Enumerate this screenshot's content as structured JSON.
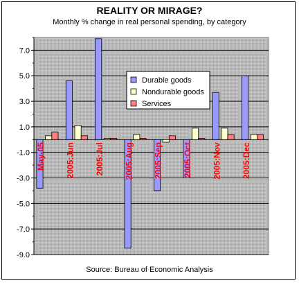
{
  "chart_data": {
    "type": "bar",
    "title": "REALITY OR MIRAGE?",
    "subtitle": "Monthly % change in real personal spending, by category",
    "source": "Source: Bureau of Economic Analysis",
    "categories": [
      "May-05",
      "2005:Jun",
      "2005:Jul",
      "2005:Aug",
      "2005:Sep",
      "2005:Oct",
      "2005:Nov",
      "2005:Dec"
    ],
    "series": [
      {
        "name": "Durable goods",
        "color": "#9999ff",
        "values": [
          -3.8,
          4.6,
          7.9,
          -8.5,
          -4.0,
          -3.0,
          3.7,
          5.0
        ]
      },
      {
        "name": "Nondurable goods",
        "color": "#ffffcc",
        "values": [
          0.3,
          1.1,
          0.1,
          0.4,
          -0.2,
          0.9,
          0.9,
          0.4
        ]
      },
      {
        "name": "Services",
        "color": "#ff8080",
        "values": [
          0.6,
          0.3,
          0.1,
          0.1,
          0.3,
          0.1,
          0.4,
          0.4
        ]
      }
    ],
    "y_ticks": [
      "7.0",
      "5.0",
      "3.0",
      "1.0",
      "-1.0",
      "-3.0",
      "-5.0",
      "-7.0",
      "-9.0"
    ],
    "ylim": [
      -9,
      8
    ],
    "grid": true,
    "legend_position": "top-right-inside",
    "plot_background": "#c0c0c0",
    "category_label_color": "#ff0000"
  }
}
